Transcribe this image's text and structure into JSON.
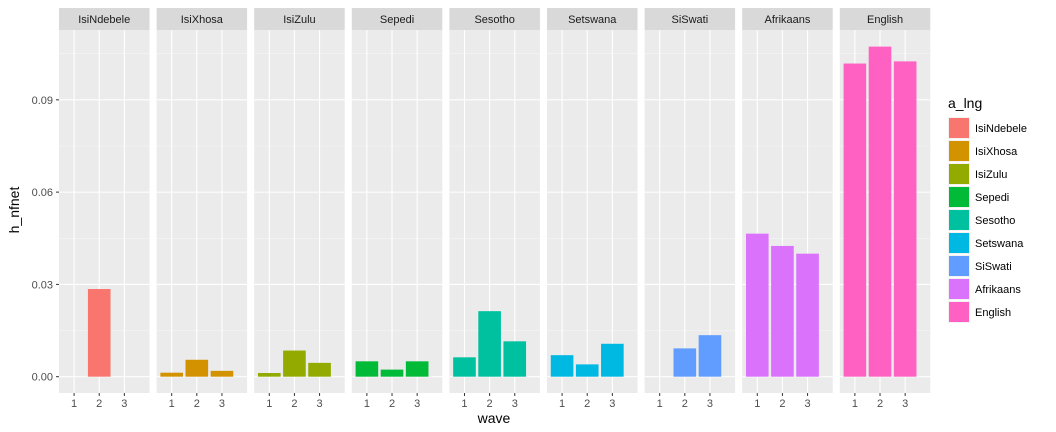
{
  "chart_data": {
    "type": "bar",
    "facet_by": "a_lng",
    "panels": [
      "IsiNdebele",
      "IsiXhosa",
      "IsiZulu",
      "Sepedi",
      "Sesotho",
      "Setswana",
      "SiSwati",
      "Afrikaans",
      "English"
    ],
    "categories": [
      "1",
      "2",
      "3"
    ],
    "series": [
      {
        "name": "IsiNdebele",
        "color": "#F8766D",
        "values": [
          null,
          0.0285,
          null
        ]
      },
      {
        "name": "IsiXhosa",
        "color": "#D39200",
        "values": [
          0.0013,
          0.0055,
          0.0019
        ]
      },
      {
        "name": "IsiZulu",
        "color": "#93AA00",
        "values": [
          0.0012,
          0.0085,
          0.0045
        ]
      },
      {
        "name": "Sepedi",
        "color": "#00BA38",
        "values": [
          0.005,
          0.0023,
          0.005
        ]
      },
      {
        "name": "Sesotho",
        "color": "#00C19F",
        "values": [
          0.0063,
          0.0213,
          0.0115
        ]
      },
      {
        "name": "Setswana",
        "color": "#00B9E3",
        "values": [
          0.007,
          0.004,
          0.0107
        ]
      },
      {
        "name": "SiSwati",
        "color": "#619CFF",
        "values": [
          null,
          0.0092,
          0.0135
        ]
      },
      {
        "name": "Afrikaans",
        "color": "#DB72FB",
        "values": [
          0.0465,
          0.0425,
          0.04
        ]
      },
      {
        "name": "English",
        "color": "#FF61C3",
        "values": [
          0.1018,
          0.1073,
          0.1025
        ]
      }
    ],
    "xlabel": "wave",
    "ylabel": "h_nfnet",
    "yticks": [
      0.0,
      0.03,
      0.06,
      0.09
    ],
    "ytick_labels": [
      "0.00",
      "0.03",
      "0.06",
      "0.09"
    ],
    "ylim": [
      -0.0053,
      0.1127
    ],
    "legend": {
      "title": "a_lng",
      "position": "right"
    },
    "grid": true
  }
}
